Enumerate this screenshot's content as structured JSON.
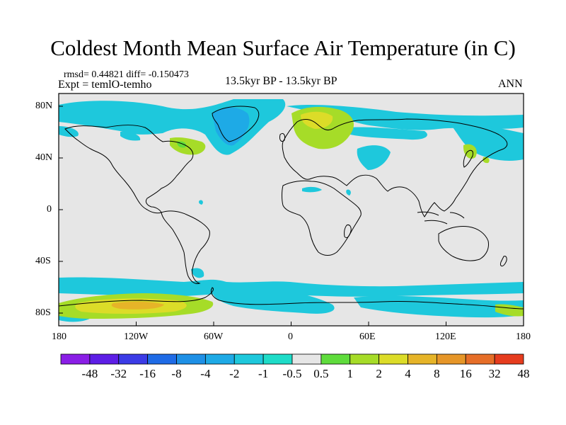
{
  "title": "Coldest Month Mean Surface Air Temperature (in C)",
  "stats": "rmsd= 0.44821  diff= -0.150473",
  "expt": "Expt = temlO-temho",
  "period": "13.5kyr BP - 13.5kyr BP",
  "season": "ANN",
  "y_ticks": [
    "80N",
    "40N",
    "0",
    "40S",
    "80S"
  ],
  "x_ticks": [
    "180",
    "120W",
    "60W",
    "0",
    "60E",
    "120E",
    "180"
  ],
  "colorbar": {
    "labels": [
      "-48",
      "-32",
      "-16",
      "-8",
      "-4",
      "-2",
      "-1",
      "-0.5",
      "0.5",
      "1",
      "2",
      "4",
      "8",
      "16",
      "32",
      "48"
    ],
    "colors": [
      "#8a1ee6",
      "#5d1ee6",
      "#3b3be6",
      "#1f6be6",
      "#1e90e6",
      "#1eaae6",
      "#1ec8dc",
      "#1edcc8",
      "#e6e6e6",
      "#5fdc3c",
      "#a6dc28",
      "#dcdc28",
      "#e6b428",
      "#e69628",
      "#e66e28",
      "#e63c1e"
    ]
  },
  "colors": {
    "background": "#e6e6e6",
    "coast": "#000000"
  }
}
